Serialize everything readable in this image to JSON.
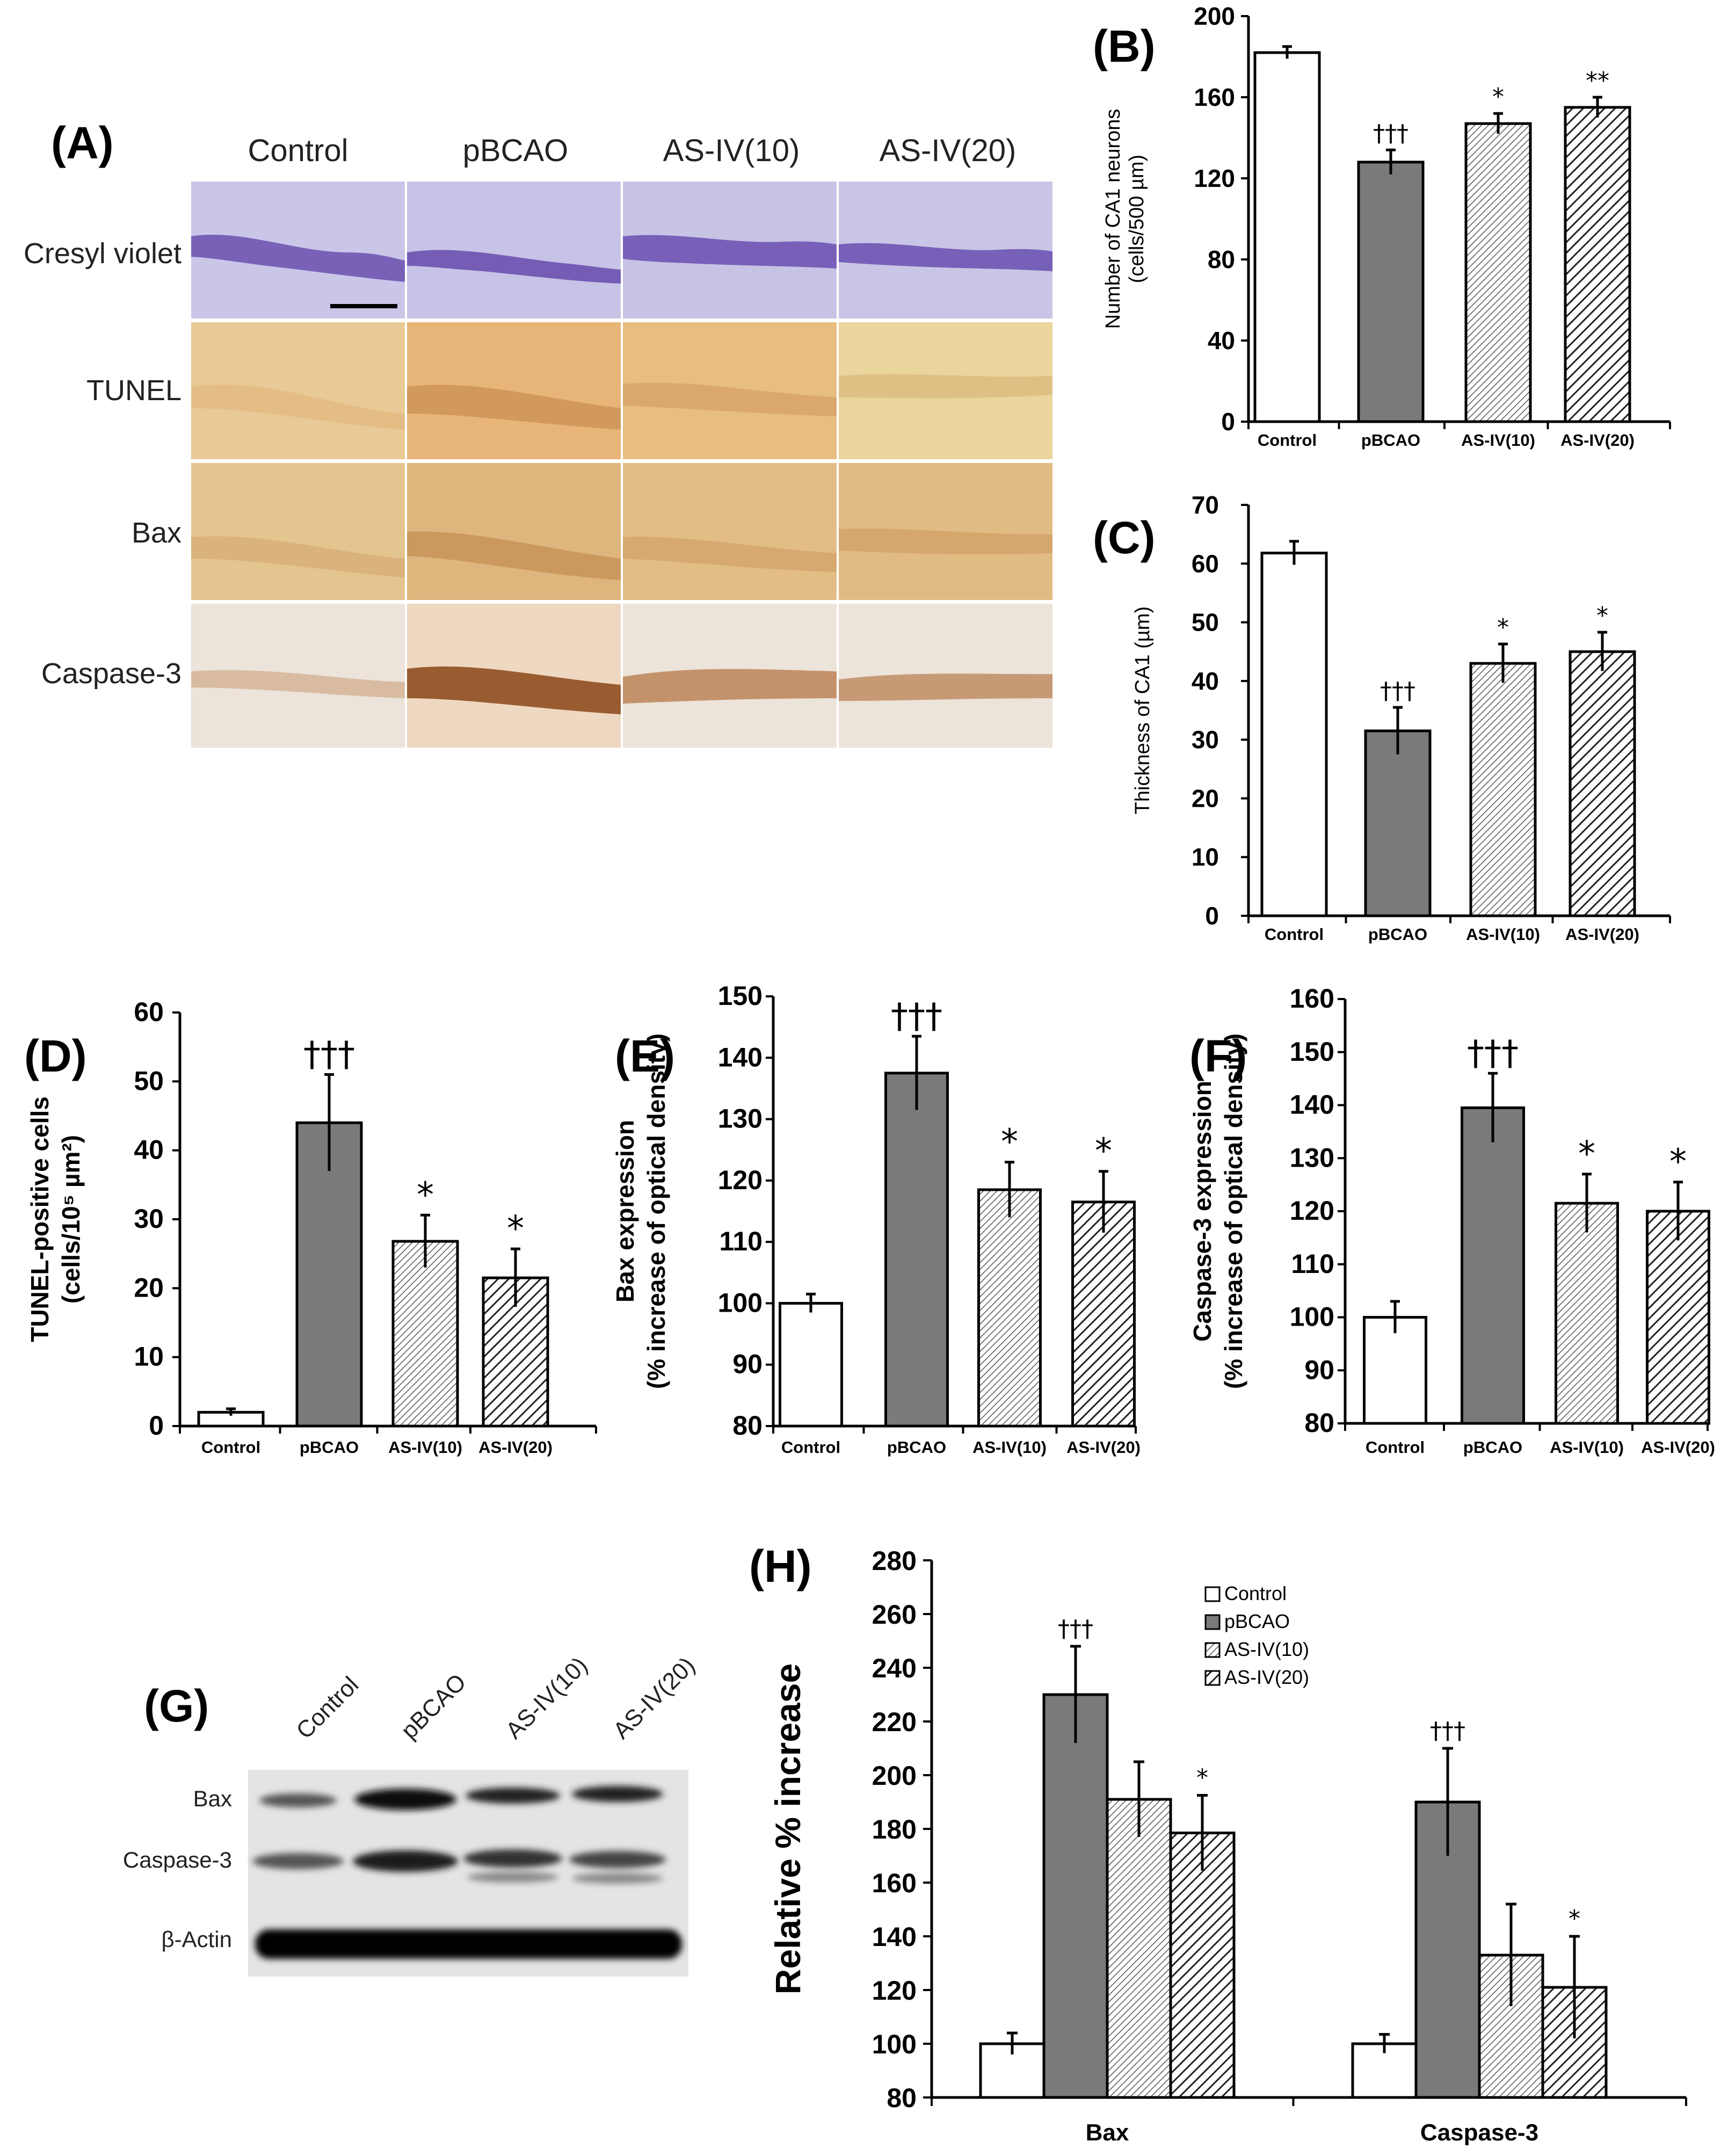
{
  "panel_a": {
    "label": "(A)",
    "columns": [
      "Control",
      "pBCAO",
      "AS-IV(10)",
      "AS-IV(20)"
    ],
    "rows": [
      "Cresyl violet",
      "TUNEL",
      "Bax",
      "Caspase-3"
    ]
  },
  "panel_g": {
    "label": "(G)",
    "lanes": [
      "Control",
      "pBCAO",
      "AS-IV(10)",
      "AS-IV(20)"
    ],
    "rows": [
      "Bax",
      "Caspase-3",
      "β-Actin"
    ]
  },
  "colors": {
    "control": "#ffffff",
    "pbcao": "#7a7a7a",
    "hatch_fine": "#555555",
    "hatch_bold": "#222222",
    "axis": "#000000"
  },
  "chart_data": [
    {
      "id": "B",
      "label": "(B)",
      "type": "bar",
      "categories": [
        "Control",
        "pBCAO",
        "AS-IV(10)",
        "AS-IV(20)"
      ],
      "values": [
        182,
        128,
        147,
        155
      ],
      "errors": [
        3,
        6,
        5,
        5
      ],
      "significance": [
        "",
        "†††",
        "*",
        "**"
      ],
      "ylabel_lines": [
        "Number of CA1 neurons",
        "(cells/500 µm)"
      ],
      "ylim": [
        0,
        200
      ],
      "yticks": [
        "0",
        "40",
        "80",
        "120",
        "160",
        "200"
      ]
    },
    {
      "id": "C",
      "label": "(C)",
      "type": "bar",
      "categories": [
        "Control",
        "pBCAO",
        "AS-IV(10)",
        "AS-IV(20)"
      ],
      "values": [
        61.8,
        31.5,
        43,
        45
      ],
      "errors": [
        2,
        4,
        3.3,
        3.3
      ],
      "significance": [
        "",
        "†††",
        "*",
        "*"
      ],
      "ylabel_lines": [
        "Thickness of CA1 (µm)"
      ],
      "ylim": [
        0,
        70
      ],
      "yticks": [
        "0",
        "10",
        "20",
        "30",
        "40",
        "50",
        "60",
        "70"
      ]
    },
    {
      "id": "D",
      "label": "(D)",
      "type": "bar",
      "categories": [
        "Control",
        "pBCAO",
        "AS-IV(10)",
        "AS-IV(20)"
      ],
      "values": [
        2,
        44,
        26.8,
        21.5
      ],
      "errors": [
        0.5,
        7,
        3.8,
        4.2
      ],
      "significance": [
        "",
        "†††",
        "*",
        "*"
      ],
      "ylabel_lines": [
        "TUNEL-positive cells",
        "(cells/10⁵ µm²)"
      ],
      "ylim": [
        0,
        60
      ],
      "yticks": [
        "0",
        "10",
        "20",
        "30",
        "40",
        "50",
        "60"
      ]
    },
    {
      "id": "E",
      "label": "(E)",
      "type": "bar",
      "categories": [
        "Control",
        "pBCAO",
        "AS-IV(10)",
        "AS-IV(20)"
      ],
      "values": [
        100,
        137.5,
        118.5,
        116.5
      ],
      "errors": [
        1.5,
        6,
        4.5,
        5
      ],
      "significance": [
        "",
        "†††",
        "*",
        "*"
      ],
      "ylabel_lines": [
        "Bax expression",
        "(% increase of optical density)"
      ],
      "ylim": [
        80,
        150
      ],
      "yticks": [
        "80",
        "90",
        "100",
        "110",
        "120",
        "130",
        "140",
        "150"
      ]
    },
    {
      "id": "F",
      "label": "(F)",
      "type": "bar",
      "categories": [
        "Control",
        "pBCAO",
        "AS-IV(10)",
        "AS-IV(20)"
      ],
      "values": [
        100,
        139.5,
        121.5,
        120
      ],
      "errors": [
        3,
        6.5,
        5.5,
        5.5
      ],
      "significance": [
        "",
        "†††",
        "*",
        "*"
      ],
      "ylabel_lines": [
        "Caspase-3 expression",
        "(% increase of optical density)"
      ],
      "ylim": [
        80,
        160
      ],
      "yticks": [
        "80",
        "90",
        "100",
        "110",
        "120",
        "130",
        "140",
        "150",
        "160"
      ]
    },
    {
      "id": "H",
      "label": "(H)",
      "type": "bar",
      "categories": [
        "Bax",
        "Caspase-3"
      ],
      "series": [
        {
          "name": "Control",
          "values": [
            100,
            100
          ],
          "errors": [
            4,
            3.5
          ],
          "significance": [
            "",
            ""
          ]
        },
        {
          "name": "pBCAO",
          "values": [
            230,
            190
          ],
          "errors": [
            18,
            20
          ],
          "significance": [
            "†††",
            "†††"
          ]
        },
        {
          "name": "AS-IV(10)",
          "values": [
            191,
            133
          ],
          "errors": [
            14,
            19
          ],
          "significance": [
            "",
            ""
          ]
        },
        {
          "name": "AS-IV(20)",
          "values": [
            178.5,
            121
          ],
          "errors": [
            14,
            19
          ],
          "significance": [
            "*",
            "*"
          ]
        }
      ],
      "ylabel_lines": [
        "Relative % increase"
      ],
      "ylim": [
        80,
        280
      ],
      "yticks": [
        "80",
        "100",
        "120",
        "140",
        "160",
        "180",
        "200",
        "220",
        "240",
        "260",
        "280"
      ],
      "legend": [
        "Control",
        "pBCAO",
        "AS-IV(10)",
        "AS-IV(20)"
      ]
    }
  ]
}
